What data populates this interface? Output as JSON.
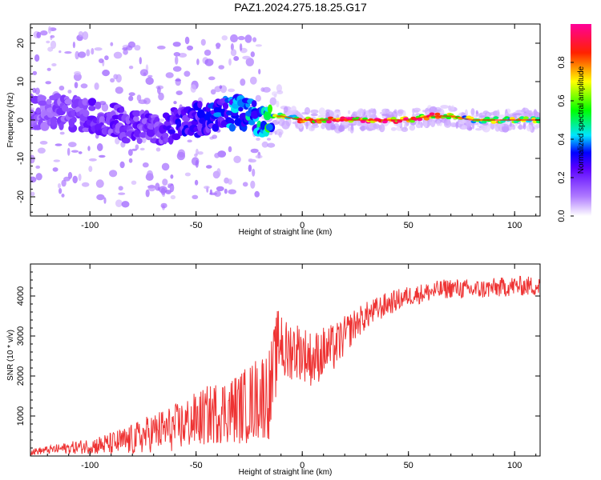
{
  "title": "PAZ1.2024.275.18.25.G17",
  "chart_data": [
    {
      "type": "heatmap",
      "title": "PAZ1.2024.275.18.25.G17",
      "xlabel": "Height of straight line (km)",
      "ylabel": "Frequency (Hz)",
      "xlim": [
        -128,
        112
      ],
      "ylim": [
        -25,
        25
      ],
      "xticks": [
        -100,
        -50,
        0,
        50,
        100
      ],
      "yticks": [
        -20,
        -10,
        0,
        10,
        20
      ],
      "colorbar": {
        "label": "Normalized spectral amplitude",
        "range": [
          0,
          1
        ],
        "ticks": [
          0.0,
          0.2,
          0.4,
          0.6,
          0.8
        ],
        "colors": [
          "#ffffff",
          "#8a2be2",
          "#0000ff",
          "#00e5ff",
          "#00ff00",
          "#ffff00",
          "#ff0000",
          "#ff00aa"
        ]
      },
      "ridge": {
        "description_values": "dominant frequency vs height",
        "x": [
          -115,
          -100,
          -90,
          -80,
          -70,
          -60,
          -50,
          -40,
          -30,
          -20,
          -15,
          -10,
          0,
          10,
          20,
          30,
          40,
          50,
          60,
          70,
          80,
          90,
          100,
          110
        ],
        "y": [
          2,
          1,
          0,
          -2,
          -2,
          -1,
          0,
          1,
          2,
          0,
          1,
          1,
          0,
          0,
          0,
          0,
          0,
          0,
          1,
          1,
          0,
          0,
          0,
          0
        ],
        "amplitude": [
          0.15,
          0.2,
          0.2,
          0.2,
          0.2,
          0.25,
          0.25,
          0.3,
          0.35,
          0.4,
          0.5,
          0.55,
          0.75,
          0.8,
          0.9,
          0.9,
          0.9,
          0.85,
          0.85,
          0.6,
          0.55,
          0.6,
          0.6,
          0.7
        ]
      },
      "grid": false
    },
    {
      "type": "line",
      "xlabel": "Height of straight line (km)",
      "ylabel": "SNR (10 * v/v)",
      "xlim": [
        -128,
        112
      ],
      "ylim": [
        0,
        4800
      ],
      "xticks": [
        -100,
        -50,
        0,
        50,
        100
      ],
      "yticks": [
        1000,
        2000,
        3000,
        4000
      ],
      "color": "#ee3333",
      "grid": false,
      "series": [
        {
          "x": [
            -128,
            -120,
            -110,
            -100,
            -90,
            -80,
            -70,
            -60,
            -50,
            -40,
            -30,
            -25,
            -20,
            -15,
            -12,
            -10,
            -8,
            -5,
            0,
            5,
            10,
            15,
            20,
            25,
            30,
            40,
            50,
            60,
            70,
            80,
            90,
            100,
            112
          ],
          "y": [
            100,
            150,
            200,
            250,
            300,
            400,
            600,
            700,
            900,
            1100,
            1200,
            1300,
            1500,
            1600,
            2600,
            3000,
            2500,
            2700,
            2600,
            2400,
            2600,
            2700,
            3000,
            3300,
            3500,
            3800,
            4000,
            4100,
            4200,
            4150,
            4200,
            4250,
            4250
          ],
          "spread": [
            80,
            100,
            150,
            200,
            300,
            400,
            500,
            600,
            700,
            800,
            900,
            1000,
            1100,
            1200,
            1000,
            900,
            900,
            800,
            700,
            700,
            650,
            600,
            500,
            400,
            350,
            300,
            250,
            250,
            250,
            250,
            250,
            250,
            250
          ]
        }
      ]
    }
  ]
}
